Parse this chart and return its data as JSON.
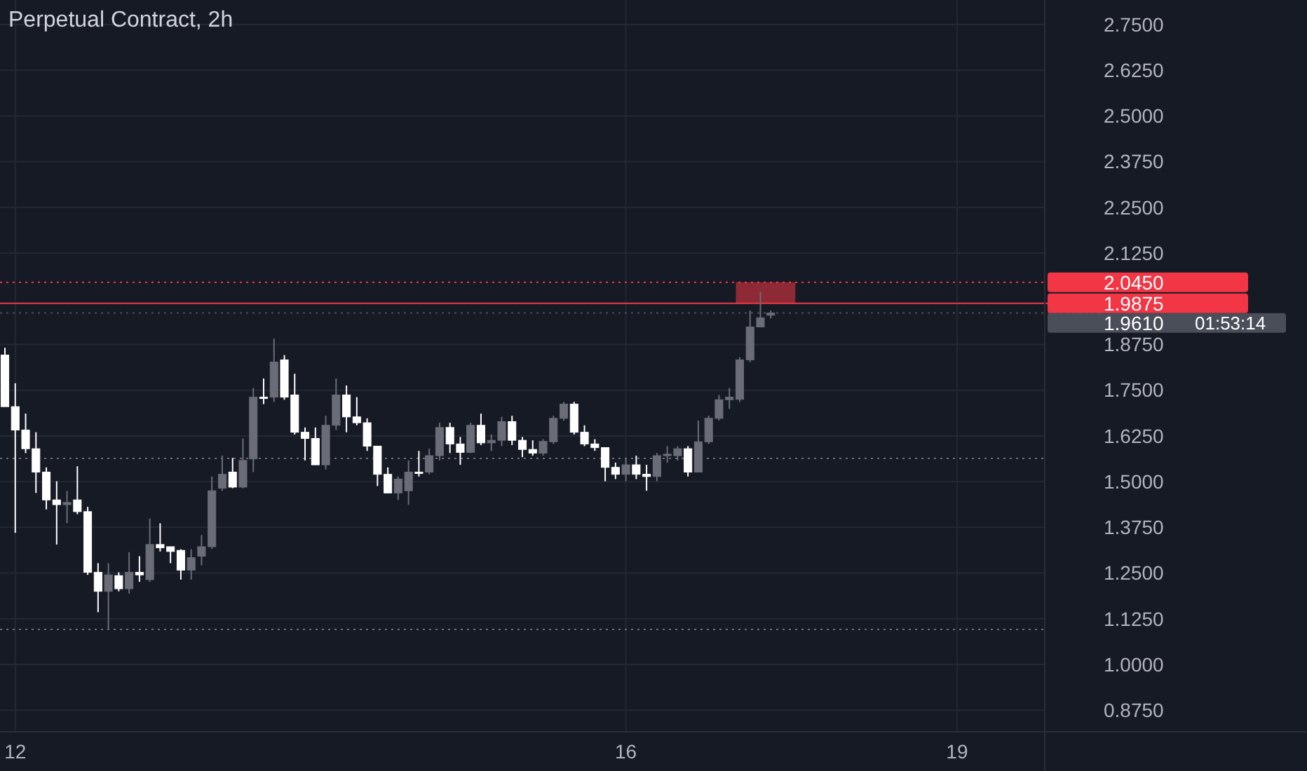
{
  "chart_data": {
    "type": "candlestick",
    "title": "Perpetual Contract, 2h",
    "categories": [
      null,
      "12",
      null,
      null,
      null,
      null,
      null,
      null,
      null,
      null,
      null,
      null,
      null,
      null,
      null,
      null,
      null,
      null,
      null,
      null,
      null,
      null,
      null,
      null,
      null,
      null,
      null,
      null,
      null,
      null,
      null,
      null,
      null,
      null,
      null,
      null,
      null,
      null,
      null,
      null,
      null,
      null,
      null,
      null,
      null,
      null,
      null,
      null,
      null,
      null,
      null,
      null,
      null,
      null,
      null,
      null,
      null,
      null,
      null,
      null,
      "16",
      null,
      null,
      null,
      null,
      null,
      null,
      null,
      null,
      null,
      null,
      null,
      null,
      null,
      null,
      null,
      null,
      null,
      null,
      null,
      null,
      null,
      null,
      null,
      null,
      null,
      null,
      null,
      null,
      null,
      null,
      null,
      "19",
      null,
      null,
      null,
      null,
      null,
      null,
      null,
      null
    ],
    "ohlc": [
      [
        1.846,
        1.866,
        1.705,
        1.705
      ],
      [
        1.705,
        1.769,
        1.36,
        1.641
      ],
      [
        1.641,
        1.686,
        1.578,
        1.59
      ],
      [
        1.59,
        1.635,
        1.469,
        1.526
      ],
      [
        1.526,
        1.539,
        1.424,
        1.45
      ],
      [
        1.45,
        1.501,
        1.328,
        1.437
      ],
      [
        1.437,
        1.475,
        1.386,
        1.443
      ],
      [
        1.45,
        1.542,
        1.411,
        1.418
      ],
      [
        1.418,
        1.431,
        1.245,
        1.252
      ],
      [
        1.252,
        1.277,
        1.143,
        1.2
      ],
      [
        1.2,
        1.277,
        1.098,
        1.245
      ],
      [
        1.243,
        1.252,
        1.2,
        1.207
      ],
      [
        1.207,
        1.307,
        1.194,
        1.252
      ],
      [
        1.252,
        1.296,
        1.226,
        1.245
      ],
      [
        1.232,
        1.399,
        1.226,
        1.328
      ],
      [
        1.328,
        1.386,
        1.309,
        1.319
      ],
      [
        1.322,
        1.322,
        1.277,
        1.309
      ],
      [
        1.312,
        1.315,
        1.232,
        1.258
      ],
      [
        1.258,
        1.315,
        1.232,
        1.292
      ],
      [
        1.296,
        1.354,
        1.271,
        1.322
      ],
      [
        1.322,
        1.514,
        1.316,
        1.475
      ],
      [
        1.482,
        1.571,
        1.475,
        1.52
      ],
      [
        1.526,
        1.565,
        1.482,
        1.485
      ],
      [
        1.485,
        1.618,
        1.482,
        1.558
      ],
      [
        1.562,
        1.756,
        1.526,
        1.731
      ],
      [
        1.731,
        1.782,
        1.712,
        1.728
      ],
      [
        1.731,
        1.891,
        1.718,
        1.827
      ],
      [
        1.833,
        1.846,
        1.724,
        1.731
      ],
      [
        1.737,
        1.795,
        1.629,
        1.635
      ],
      [
        1.635,
        1.648,
        1.558,
        1.618
      ],
      [
        1.618,
        1.648,
        1.546,
        1.546
      ],
      [
        1.546,
        1.68,
        1.533,
        1.654
      ],
      [
        1.654,
        1.782,
        1.641,
        1.737
      ],
      [
        1.737,
        1.763,
        1.635,
        1.677
      ],
      [
        1.677,
        1.731,
        1.654,
        1.661
      ],
      [
        1.661,
        1.673,
        1.584,
        1.597
      ],
      [
        1.597,
        1.597,
        1.488,
        1.52
      ],
      [
        1.52,
        1.539,
        1.469,
        1.469
      ],
      [
        1.469,
        1.514,
        1.45,
        1.507
      ],
      [
        1.475,
        1.558,
        1.437,
        1.526
      ],
      [
        1.526,
        1.584,
        1.514,
        1.524
      ],
      [
        1.526,
        1.59,
        1.52,
        1.571
      ],
      [
        1.571,
        1.661,
        1.558,
        1.648
      ],
      [
        1.648,
        1.661,
        1.578,
        1.603
      ],
      [
        1.603,
        1.622,
        1.546,
        1.58
      ],
      [
        1.58,
        1.661,
        1.578,
        1.654
      ],
      [
        1.654,
        1.686,
        1.6,
        1.606
      ],
      [
        1.606,
        1.629,
        1.584,
        1.613
      ],
      [
        1.613,
        1.677,
        1.597,
        1.664
      ],
      [
        1.664,
        1.68,
        1.6,
        1.613
      ],
      [
        1.613,
        1.622,
        1.567,
        1.588
      ],
      [
        1.588,
        1.613,
        1.571,
        1.578
      ],
      [
        1.578,
        1.616,
        1.571,
        1.61
      ],
      [
        1.609,
        1.68,
        1.603,
        1.673
      ],
      [
        1.673,
        1.718,
        1.667,
        1.712
      ],
      [
        1.712,
        1.718,
        1.629,
        1.635
      ],
      [
        1.635,
        1.654,
        1.597,
        1.603
      ],
      [
        1.603,
        1.616,
        1.584,
        1.593
      ],
      [
        1.593,
        1.593,
        1.501,
        1.539
      ],
      [
        1.539,
        1.552,
        1.507,
        1.52
      ],
      [
        1.52,
        1.565,
        1.501,
        1.546
      ],
      [
        1.546,
        1.571,
        1.507,
        1.52
      ],
      [
        1.52,
        1.546,
        1.475,
        1.514
      ],
      [
        1.514,
        1.578,
        1.501,
        1.571
      ],
      [
        1.571,
        1.597,
        1.552,
        1.575
      ],
      [
        1.571,
        1.597,
        1.558,
        1.59
      ],
      [
        1.59,
        1.597,
        1.514,
        1.526
      ],
      [
        1.526,
        1.667,
        1.526,
        1.609
      ],
      [
        1.609,
        1.68,
        1.603,
        1.673
      ],
      [
        1.673,
        1.737,
        1.667,
        1.724
      ],
      [
        1.724,
        1.756,
        1.699,
        1.731
      ],
      [
        1.725,
        1.84,
        1.718,
        1.833
      ],
      [
        1.833,
        1.968,
        1.827,
        1.923
      ],
      [
        1.923,
        2.019,
        1.923,
        1.948
      ],
      [
        1.955,
        1.968,
        1.946,
        1.961
      ],
      null,
      null,
      null,
      null,
      null,
      null,
      null,
      null,
      null,
      null,
      null,
      null,
      null,
      null,
      null,
      null,
      null,
      null,
      null,
      null,
      null,
      null,
      null,
      null,
      null,
      null
    ],
    "colors": [
      "#ffffff",
      "#ffffff",
      "#ffffff",
      "#ffffff",
      "#ffffff",
      "#ffffff",
      "#6a6d78",
      "#ffffff",
      "#ffffff",
      "#ffffff",
      "#6a6d78",
      "#ffffff",
      "#6a6d78",
      "#ffffff",
      "#6a6d78",
      "#ffffff",
      "#ffffff",
      "#ffffff",
      "#6a6d78",
      "#6a6d78",
      "#6a6d78",
      "#6a6d78",
      "#ffffff",
      "#6a6d78",
      "#6a6d78",
      "#ffffff",
      "#6a6d78",
      "#ffffff",
      "#ffffff",
      "#ffffff",
      "#ffffff",
      "#6a6d78",
      "#6a6d78",
      "#ffffff",
      "#ffffff",
      "#ffffff",
      "#ffffff",
      "#ffffff",
      "#6a6d78",
      "#6a6d78",
      "#ffffff",
      "#6a6d78",
      "#6a6d78",
      "#ffffff",
      "#ffffff",
      "#6a6d78",
      "#ffffff",
      "#6a6d78",
      "#6a6d78",
      "#ffffff",
      "#ffffff",
      "#ffffff",
      "#6a6d78",
      "#6a6d78",
      "#6a6d78",
      "#ffffff",
      "#ffffff",
      "#ffffff",
      "#ffffff",
      "#ffffff",
      "#6a6d78",
      "#ffffff",
      "#ffffff",
      "#6a6d78",
      "#6a6d78",
      "#6a6d78",
      "#ffffff",
      "#6a6d78",
      "#6a6d78",
      "#6a6d78",
      "#6a6d78",
      "#6a6d78",
      "#6a6d78",
      "#6a6d78",
      "#6a6d78",
      null,
      null,
      null,
      null,
      null,
      null,
      null,
      null,
      null,
      null,
      null,
      null,
      null,
      null,
      null,
      null,
      null,
      null,
      null,
      null,
      null,
      null,
      null,
      null,
      null,
      null
    ],
    "ylim": [
      0.816,
      2.817
    ],
    "yticks": [
      {
        "value": 0.875,
        "label": "0.8750"
      },
      {
        "value": 1,
        "label": "1.0000"
      },
      {
        "value": 1.125,
        "label": "1.1250"
      },
      {
        "value": 1.25,
        "label": "1.2500"
      },
      {
        "value": 1.375,
        "label": "1.3750"
      },
      {
        "value": 1.5,
        "label": "1.5000"
      },
      {
        "value": 1.625,
        "label": "1.6250"
      },
      {
        "value": 1.75,
        "label": "1.7500"
      },
      {
        "value": 1.875,
        "label": "1.8750"
      },
      {
        "value": 2.125,
        "label": "2.1250"
      },
      {
        "value": 2.25,
        "label": "2.2500"
      },
      {
        "value": 2.375,
        "label": "2.3750"
      },
      {
        "value": 2.5,
        "label": "2.5000"
      },
      {
        "value": 2.625,
        "label": "2.6250"
      },
      {
        "value": 2.75,
        "label": "2.7500"
      }
    ],
    "grid": true,
    "ref_lines": [
      {
        "axis": "y",
        "value": 2.045,
        "label": "2.0450",
        "color": "#f23645",
        "line_style": "dotted"
      },
      {
        "axis": "y",
        "value": 1.9875,
        "label": "1.9875",
        "color": "#f23645",
        "line_style": "solid"
      },
      {
        "axis": "y",
        "value": 1.961,
        "label": "1.9610",
        "color": "#4a4e59",
        "line_style": "dotted"
      },
      {
        "axis": "y",
        "value": 1.5636,
        "color": "#6a6d78",
        "line_style": "dotted"
      },
      {
        "axis": "y",
        "value": 1.096,
        "color": "#6a6d78",
        "line_style": "dotted"
      }
    ],
    "annotations": [
      "01:53:14"
    ]
  }
}
